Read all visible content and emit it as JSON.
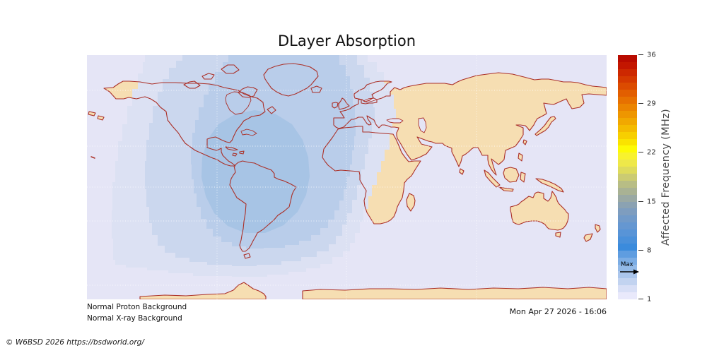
{
  "title": "DLayer Absorption",
  "status_lines": [
    "Normal Proton Background",
    "Normal X-ray Background"
  ],
  "timestamp": "Mon Apr 27 2026 - 16:06",
  "copyright": "© W6BSD 2026 https://bsdworld.org/",
  "colorbar": {
    "label": "Affected Frequency (MHz)",
    "ticks": [
      36,
      29,
      22,
      15,
      8,
      1
    ],
    "range": [
      1,
      36
    ],
    "max_label": "Max",
    "colors": [
      "#e9e9fb",
      "#d8dff6",
      "#c2d3f0",
      "#abc6ec",
      "#93bae8",
      "#7cade4",
      "#5f9de0",
      "#3b8bdc",
      "#4a90da",
      "#5894d7",
      "#6597d1",
      "#719ac9",
      "#7e9dbf",
      "#8ba2b2",
      "#9aa9a4",
      "#a9b294",
      "#b8bd85",
      "#cbcb72",
      "#dedb5c",
      "#eee849",
      "#f8f22e",
      "#fdfa05",
      "#fae300",
      "#f7cf00",
      "#f4bb00",
      "#f1a800",
      "#ee9600",
      "#eb8400",
      "#e77100",
      "#e25e00",
      "#dc4b00",
      "#d53900",
      "#cd2800",
      "#c31600",
      "#b80b00"
    ]
  },
  "map": {
    "ocean_color": "#e5e5f6",
    "land_color": "#f6deb2",
    "coast_color": "#ab3028",
    "absorption_levels": [
      {
        "mhz": 2,
        "color": "#dce1f3"
      },
      {
        "mhz": 3,
        "color": "#cbd7ee"
      },
      {
        "mhz": 4,
        "color": "#b9cdea"
      },
      {
        "mhz": 5,
        "color": "#a7c4e5"
      }
    ]
  },
  "chart_data": {
    "type": "heatmap",
    "title": "DLayer Absorption",
    "colorbar_label": "Affected Frequency (MHz)",
    "colorbar_ticks": [
      36,
      29,
      22,
      15,
      8,
      1
    ],
    "colorbar_range": [
      1,
      36
    ],
    "contour_levels_mhz": [
      2,
      3,
      4,
      5
    ],
    "max_affected_frequency_mhz": 5,
    "absorption_region": "day-lit hemisphere centered over the Americas / western Atlantic",
    "annotations": [
      "Max"
    ],
    "status": [
      "Normal Proton Background",
      "Normal X-ray Background"
    ],
    "timestamp": "Mon Apr 27 2026 - 16:06"
  }
}
